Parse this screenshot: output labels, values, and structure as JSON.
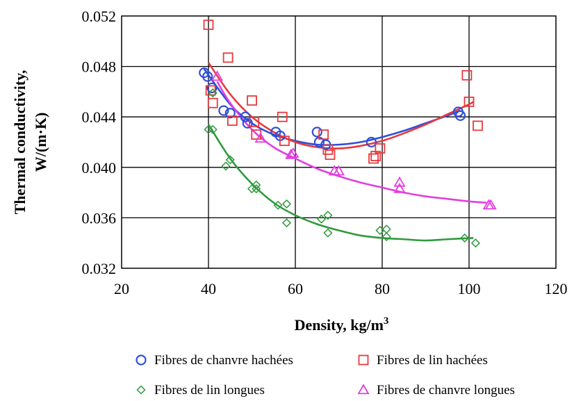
{
  "chart_data": {
    "type": "scatter",
    "xlabel": "Density,  kg/m",
    "xlabel_sup": "3",
    "ylabel_line1": "Thermal conductivity,",
    "ylabel_line2": "W/(m·K)",
    "xlim": [
      20,
      120
    ],
    "ylim": [
      0.032,
      0.052
    ],
    "x_ticks": [
      "20",
      "40",
      "60",
      "80",
      "100",
      "120"
    ],
    "y_ticks": [
      "0.032",
      "0.036",
      "0.040",
      "0.044",
      "0.048",
      "0.052"
    ],
    "grid": true,
    "legend_position": "bottom",
    "series": [
      {
        "name": "Fibres de chanvre hachées",
        "marker": "circle",
        "color": "#2f4fd8",
        "points": [
          [
            39,
            0.0475
          ],
          [
            39.8,
            0.0472
          ],
          [
            40.8,
            0.0463
          ],
          [
            43.5,
            0.0445
          ],
          [
            45,
            0.0443
          ],
          [
            48.5,
            0.044
          ],
          [
            49,
            0.0435
          ],
          [
            55.5,
            0.0428
          ],
          [
            56.5,
            0.0425
          ],
          [
            65,
            0.0428
          ],
          [
            65.5,
            0.042
          ],
          [
            67,
            0.0418
          ],
          [
            77.5,
            0.042
          ],
          [
            97.5,
            0.0444
          ],
          [
            98,
            0.0441
          ]
        ],
        "fit": [
          [
            39,
            0.0478
          ],
          [
            45,
            0.045
          ],
          [
            50,
            0.0435
          ],
          [
            55,
            0.0426
          ],
          [
            60,
            0.0421
          ],
          [
            65,
            0.0418
          ],
          [
            70,
            0.0418
          ],
          [
            75,
            0.042
          ],
          [
            80,
            0.0424
          ],
          [
            85,
            0.0429
          ],
          [
            90,
            0.0435
          ],
          [
            95,
            0.0441
          ],
          [
            98,
            0.0445
          ]
        ]
      },
      {
        "name": "Fibres de lin hachées",
        "marker": "square",
        "color": "#e8383d",
        "points": [
          [
            40,
            0.0513
          ],
          [
            44.5,
            0.0487
          ],
          [
            40.5,
            0.0461
          ],
          [
            41,
            0.0451
          ],
          [
            45.5,
            0.0437
          ],
          [
            50,
            0.0453
          ],
          [
            50.5,
            0.0436
          ],
          [
            51,
            0.0426
          ],
          [
            57,
            0.044
          ],
          [
            57.5,
            0.0421
          ],
          [
            66.5,
            0.0426
          ],
          [
            67.5,
            0.0414
          ],
          [
            68,
            0.041
          ],
          [
            78,
            0.0407
          ],
          [
            78.5,
            0.0409
          ],
          [
            79.5,
            0.0415
          ],
          [
            99.5,
            0.0473
          ],
          [
            100,
            0.0452
          ],
          [
            102,
            0.0433
          ]
        ],
        "fit": [
          [
            40,
            0.0483
          ],
          [
            45,
            0.0458
          ],
          [
            50,
            0.044
          ],
          [
            55,
            0.0428
          ],
          [
            60,
            0.042
          ],
          [
            65,
            0.0416
          ],
          [
            70,
            0.0415
          ],
          [
            75,
            0.0417
          ],
          [
            80,
            0.0421
          ],
          [
            85,
            0.0427
          ],
          [
            90,
            0.0434
          ],
          [
            95,
            0.0442
          ],
          [
            100,
            0.045
          ],
          [
            101,
            0.0452
          ]
        ]
      },
      {
        "name": "Fibres de lin longues",
        "marker": "diamond",
        "color": "#2e9a3c",
        "points": [
          [
            40,
            0.043
          ],
          [
            41,
            0.043
          ],
          [
            41,
            0.0459
          ],
          [
            44,
            0.0401
          ],
          [
            45,
            0.0406
          ],
          [
            50,
            0.0383
          ],
          [
            51,
            0.0386
          ],
          [
            51,
            0.0383
          ],
          [
            56,
            0.037
          ],
          [
            58,
            0.0371
          ],
          [
            58,
            0.0356
          ],
          [
            66,
            0.0359
          ],
          [
            67.5,
            0.0362
          ],
          [
            67.5,
            0.0348
          ],
          [
            79.5,
            0.035
          ],
          [
            81,
            0.0351
          ],
          [
            81,
            0.0345
          ],
          [
            99,
            0.0344
          ],
          [
            101.5,
            0.034
          ]
        ],
        "fit": [
          [
            40,
            0.0434
          ],
          [
            45,
            0.0407
          ],
          [
            50,
            0.0387
          ],
          [
            55,
            0.0372
          ],
          [
            60,
            0.0362
          ],
          [
            65,
            0.0355
          ],
          [
            70,
            0.035
          ],
          [
            75,
            0.0346
          ],
          [
            80,
            0.0344
          ],
          [
            85,
            0.0343
          ],
          [
            90,
            0.0342
          ],
          [
            95,
            0.0343
          ],
          [
            101,
            0.0344
          ]
        ]
      },
      {
        "name": "Fibres de chanvre longues",
        "marker": "triangle",
        "color": "#e23ee0",
        "points": [
          [
            42,
            0.0472
          ],
          [
            52,
            0.0423
          ],
          [
            59,
            0.041
          ],
          [
            59.5,
            0.0411
          ],
          [
            69,
            0.0397
          ],
          [
            70,
            0.0397
          ],
          [
            84,
            0.0388
          ],
          [
            84,
            0.0383
          ],
          [
            104.5,
            0.037
          ],
          [
            105,
            0.037
          ]
        ],
        "fit": [
          [
            42,
            0.0468
          ],
          [
            45,
            0.0451
          ],
          [
            50,
            0.043
          ],
          [
            55,
            0.0416
          ],
          [
            60,
            0.0407
          ],
          [
            65,
            0.0399
          ],
          [
            70,
            0.0393
          ],
          [
            75,
            0.0388
          ],
          [
            80,
            0.0384
          ],
          [
            85,
            0.038
          ],
          [
            90,
            0.0377
          ],
          [
            95,
            0.0375
          ],
          [
            100,
            0.0373
          ],
          [
            104,
            0.0372
          ]
        ]
      }
    ]
  }
}
